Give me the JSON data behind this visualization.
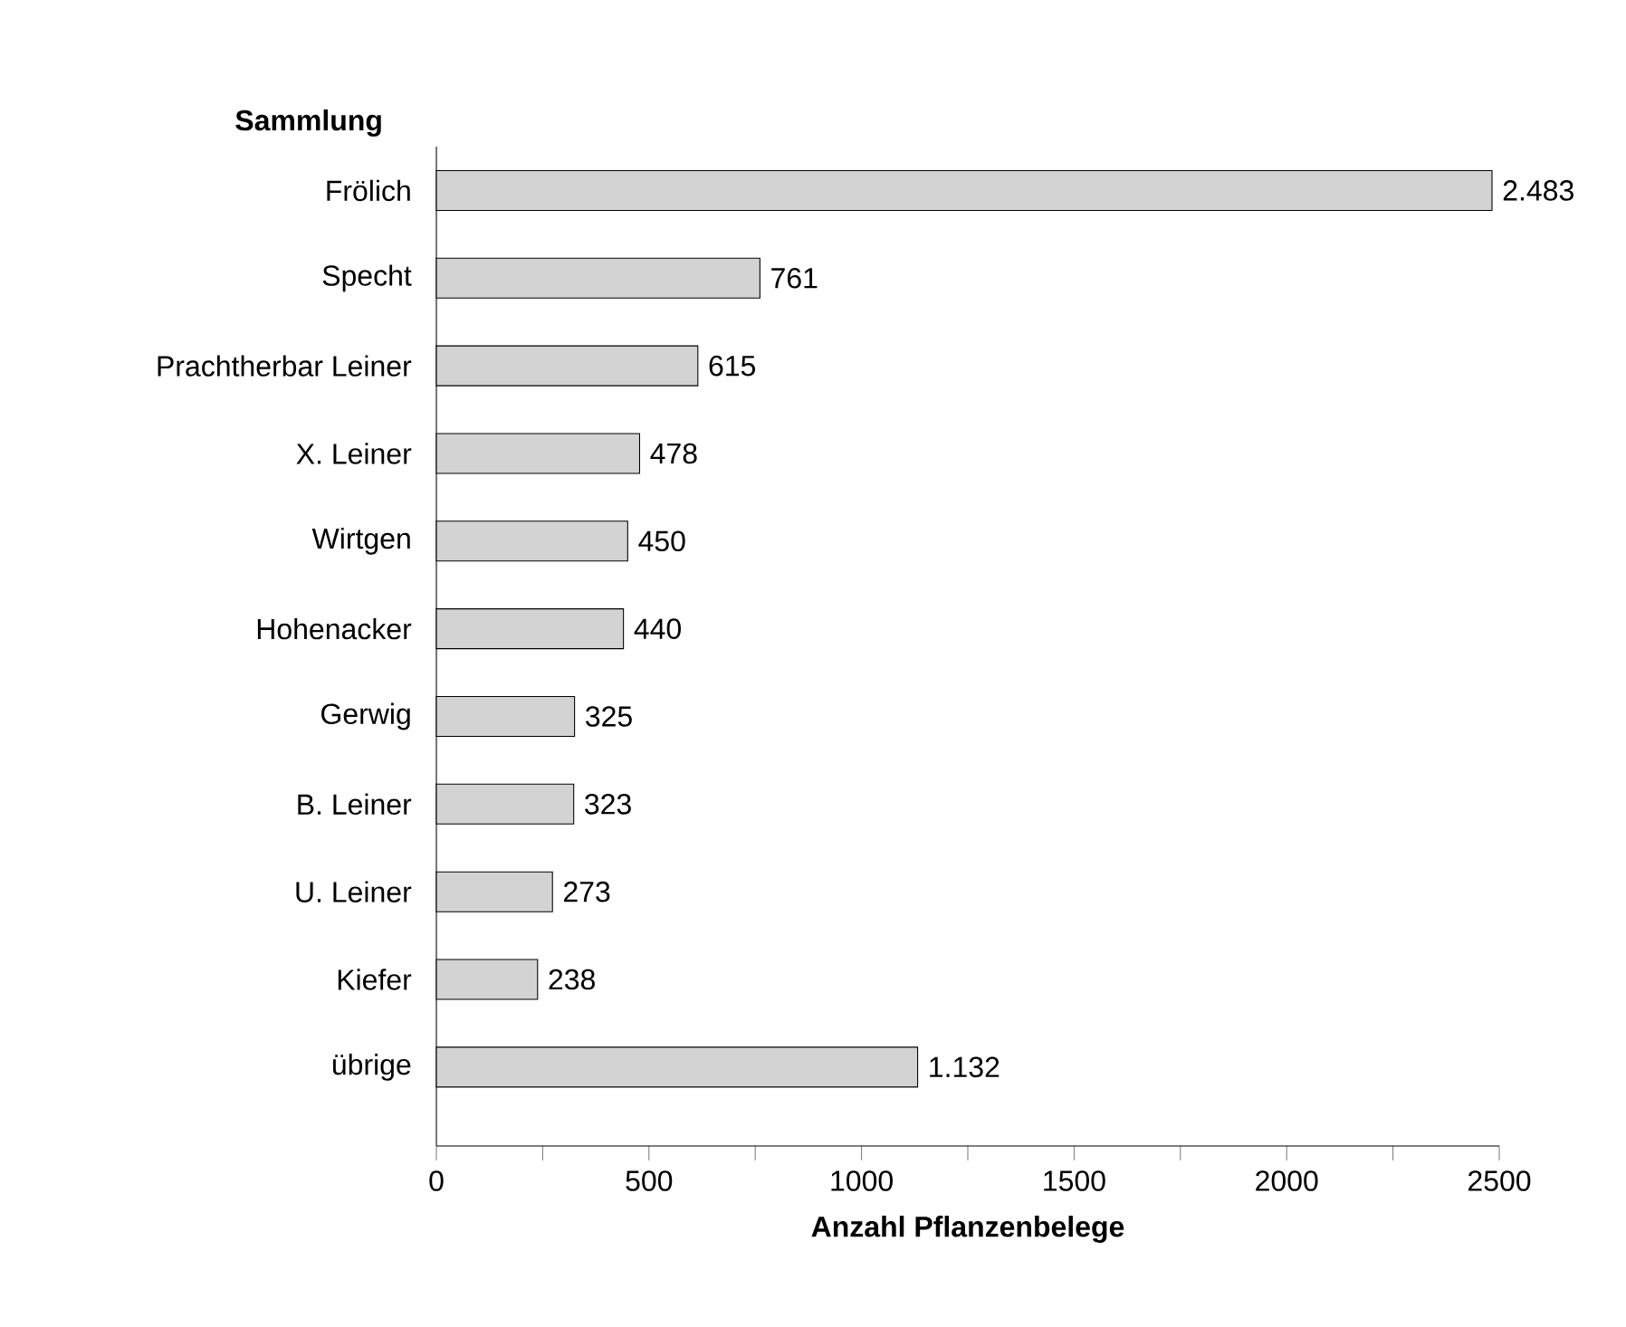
{
  "chart_data": {
    "type": "bar",
    "orientation": "horizontal",
    "ylabel": "Sammlung",
    "xlabel": "Anzahl Pflanzenbelege",
    "categories": [
      "Frölich",
      "Specht",
      "Prachtherbar Leiner",
      "X. Leiner",
      "Wirtgen",
      "Hohenacker",
      "Gerwig",
      "B. Leiner",
      "U. Leiner",
      "Kiefer",
      "übrige"
    ],
    "values": [
      2483,
      761,
      615,
      478,
      450,
      440,
      325,
      323,
      273,
      238,
      1132
    ],
    "value_labels": [
      "2.483",
      "761",
      "615",
      "478",
      "450",
      "440",
      "325",
      "323",
      "273",
      "238",
      "1.132"
    ],
    "color": "#d3d3d3",
    "xlim": [
      0,
      2500
    ],
    "xticks": [
      0,
      {
        "value": 250,
        "label": null
      },
      500,
      {
        "value": 750,
        "label": null
      },
      1000,
      {
        "value": 1250,
        "label": null
      },
      1500,
      {
        "value": 1750,
        "label": null
      },
      2000,
      {
        "value": 2250,
        "label": null
      },
      2500
    ]
  }
}
